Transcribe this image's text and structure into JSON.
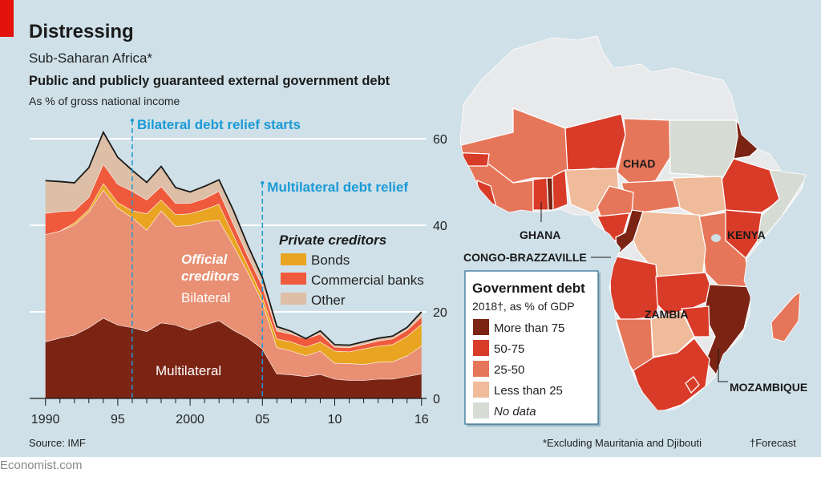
{
  "header": {
    "title": "Distressing",
    "subtitle": "Sub-Saharan Africa*",
    "chart_title": "Public and publicly guaranteed external government debt",
    "chart_unit": "As % of gross national income",
    "accent": "#e3120b"
  },
  "chart_data": [
    {
      "type": "area",
      "stacked": true,
      "title": "Public and publicly guaranteed external government debt",
      "ylabel": "As % of gross national income",
      "xlabel": "",
      "ylim": [
        0,
        60
      ],
      "yticks": [
        0,
        20,
        40,
        60
      ],
      "ytick_labels": [
        "0",
        "20",
        "40",
        "60"
      ],
      "xlim": [
        1990,
        2016
      ],
      "xtick_years": [
        1990,
        1995,
        2000,
        2005,
        2010,
        2016
      ],
      "xtick_labels": [
        "1990",
        "95",
        "2000",
        "05",
        "10",
        "16"
      ],
      "grid": true,
      "x": [
        1990,
        1991,
        1992,
        1993,
        1994,
        1995,
        1996,
        1997,
        1998,
        1999,
        2000,
        2001,
        2002,
        2003,
        2004,
        2005,
        2006,
        2007,
        2008,
        2009,
        2010,
        2011,
        2012,
        2013,
        2014,
        2015,
        2016
      ],
      "series": [
        {
          "name": "Multilateral",
          "group": "Official creditors",
          "color": "#7b2414",
          "values": [
            13.1,
            14.0,
            14.7,
            16.4,
            18.6,
            17.0,
            16.4,
            15.5,
            17.5,
            17.0,
            15.8,
            17.0,
            18.0,
            15.8,
            14.0,
            11.5,
            5.7,
            5.5,
            5.1,
            5.6,
            4.5,
            4.2,
            4.2,
            4.5,
            4.5,
            5.1,
            5.7
          ]
        },
        {
          "name": "Bilateral",
          "group": "Official creditors",
          "color": "#e98f73",
          "values": [
            24.8,
            24.7,
            25.4,
            26.7,
            29.6,
            27.0,
            25.4,
            23.4,
            25.9,
            22.8,
            24.2,
            23.9,
            23.2,
            19.5,
            15.1,
            10.8,
            6.1,
            5.5,
            4.8,
            5.4,
            3.7,
            3.9,
            3.7,
            3.9,
            4.0,
            4.8,
            6.4
          ]
        },
        {
          "name": "Bonds",
          "group": "Private creditors",
          "color": "#e9a421",
          "values": [
            0,
            0,
            0.5,
            0.6,
            1.5,
            1.3,
            1.6,
            3.8,
            2.5,
            2.7,
            2.7,
            2.8,
            3.7,
            2.5,
            1.6,
            1.3,
            2.0,
            2.1,
            2.0,
            2.1,
            2.8,
            2.7,
            3.6,
            3.7,
            4.0,
            4.5,
            5.1
          ]
        },
        {
          "name": "Commercial banks",
          "group": "Private creditors",
          "color": "#f05a3c",
          "values": [
            4.9,
            4.5,
            2.8,
            2.8,
            4.5,
            4.2,
            4.5,
            3.2,
            3.1,
            2.6,
            2.4,
            2.5,
            3.0,
            2.5,
            2.2,
            2.4,
            1.8,
            1.8,
            1.9,
            1.8,
            0.9,
            1.0,
            1.0,
            1.2,
            1.3,
            1.4,
            1.7
          ]
        },
        {
          "name": "Other",
          "group": "Private creditors",
          "color": "#dcbfa6",
          "values": [
            7.5,
            6.9,
            6.4,
            6.8,
            7.3,
            6.2,
            4.8,
            4.0,
            4.6,
            3.6,
            2.6,
            2.8,
            2.6,
            3.1,
            2.4,
            1.9,
            1.0,
            0.6,
            0.0,
            0.7,
            0.5,
            0.5,
            0.6,
            0.6,
            0.6,
            0.6,
            1.1
          ]
        }
      ],
      "annotations": [
        {
          "year": 1996,
          "text": "Bilateral debt relief starts"
        },
        {
          "year": 2005,
          "text": "Multilateral debt relief"
        }
      ],
      "area_labels": {
        "official_line1": "Official",
        "official_line2": "creditors",
        "bilateral": "Bilateral",
        "multilateral": "Multilateral"
      },
      "legend": {
        "title": "Private creditors",
        "items": [
          "Bonds",
          "Commercial banks",
          "Other"
        ],
        "placement": "center-right"
      },
      "annotation_color": "#1a9ad6"
    },
    {
      "type": "map",
      "title": "Government debt",
      "subtitle": "2018†, as % of GDP",
      "legend": [
        {
          "label": "More than 75",
          "color": "#7b2414"
        },
        {
          "label": "50-75",
          "color": "#d93b29"
        },
        {
          "label": "25-50",
          "color": "#e6765a"
        },
        {
          "label": "Less than 25",
          "color": "#f0bb9a"
        },
        {
          "label": "No data",
          "color": "#d6dbd4"
        }
      ],
      "labelled_countries": [
        "CHAD",
        "GHANA",
        "KENYA",
        "CONGO-BRAZZAVILLE",
        "ZAMBIA",
        "MOZAMBIQUE"
      ]
    }
  ],
  "footer": {
    "source": "Source: IMF",
    "note1": "*Excluding Mauritania and Djibouti",
    "note2": "†Forecast",
    "brand": "Economist.com"
  }
}
